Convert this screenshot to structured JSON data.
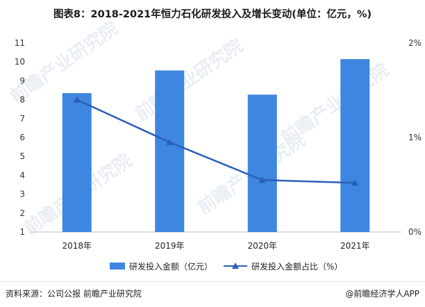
{
  "chart_data": {
    "type": "bar",
    "title": "图表8：2018-2021年恒力石化研发投入及增长变动(单位：亿元，%)",
    "categories": [
      "2018年",
      "2019年",
      "2020年",
      "2021年"
    ],
    "series": [
      {
        "name": "研发投入金额（亿元）",
        "type": "bar",
        "axis": "left",
        "values": [
          8.35,
          9.55,
          8.27,
          10.15
        ],
        "color": "#3e86df"
      },
      {
        "name": "研发投入金额占比（%）",
        "type": "line",
        "axis": "right",
        "marker": "triangle",
        "values": [
          1.4,
          0.95,
          0.55,
          0.52
        ],
        "color": "#2a5fb8"
      }
    ],
    "y_left": {
      "min": 1,
      "max": 11,
      "ticks": [
        "1",
        "2",
        "3",
        "4",
        "5",
        "6",
        "7",
        "8",
        "9",
        "10",
        "11"
      ]
    },
    "y_right": {
      "min": 0,
      "max": 2,
      "ticks": [
        "0%",
        "1%",
        "2%"
      ]
    },
    "grid": false,
    "legend_position": "bottom"
  },
  "footer": {
    "source": "资料来源：公司公报 前瞻产业研究院",
    "brand": "@前瞻经济学人APP"
  }
}
